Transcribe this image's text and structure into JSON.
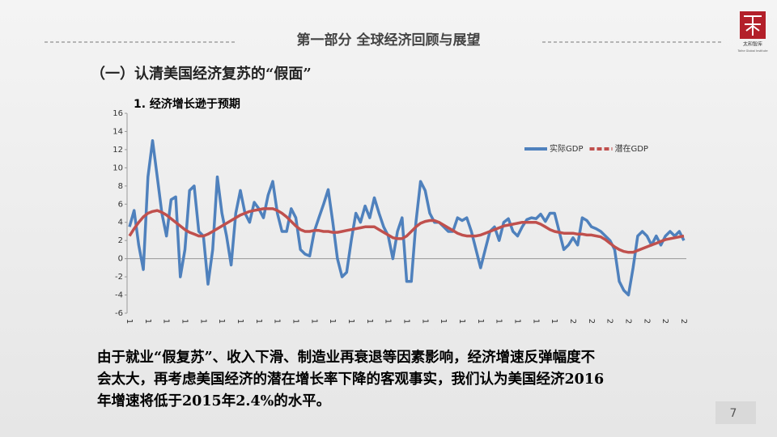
{
  "header": {
    "title": "第一部分  全球经济回顾与展望",
    "logo_name": "太和智库",
    "logo_sub": "Taihe Global Institute"
  },
  "subtitle": "（一）认清美国经济复苏的“假面”",
  "chart_data": {
    "type": "line",
    "title": "1. 经济增长逊于预期",
    "categories": [
      "1",
      null,
      null,
      null,
      "1",
      null,
      null,
      null,
      "1",
      null,
      null,
      null,
      "1",
      null,
      null,
      null,
      "1",
      null,
      null,
      null,
      "1",
      null,
      null,
      null,
      "1",
      null,
      null,
      null,
      "1",
      null,
      null,
      null,
      "1",
      null,
      null,
      null,
      "1",
      null,
      null,
      null,
      "1",
      null,
      null,
      null,
      "1",
      null,
      null,
      null,
      "1",
      null,
      null,
      null,
      "1",
      null,
      null,
      null,
      "1",
      null,
      null,
      null,
      "1",
      null,
      null,
      null,
      "1",
      null,
      null,
      null,
      "1",
      null,
      null,
      null,
      "1",
      null,
      null,
      null,
      "1",
      null,
      null,
      null,
      "1",
      null,
      null,
      null,
      "1",
      null,
      null,
      null,
      "1",
      null,
      null,
      null,
      "1",
      null,
      null,
      null,
      "2",
      null,
      null,
      null,
      "2",
      null,
      null,
      null,
      "2",
      null,
      null,
      null,
      "2",
      null,
      null,
      null,
      "2",
      null,
      null,
      null,
      "2",
      null,
      null,
      null,
      "2"
    ],
    "series": [
      {
        "name": "实际GDP",
        "color": "#4f81bd",
        "values": [
          3.5,
          5.3,
          1.5,
          -1.2,
          9,
          13,
          9,
          5,
          2.5,
          6.5,
          6.8,
          -2,
          1,
          7.5,
          8,
          3,
          2.5,
          -2.8,
          1,
          9,
          5,
          2.5,
          -0.7,
          5,
          7.5,
          5,
          4,
          6.2,
          5.5,
          4.5,
          7,
          8.5,
          5,
          3,
          3,
          5.5,
          4.5,
          1,
          0.5,
          0.3,
          3,
          4.5,
          6,
          7.6,
          4,
          0,
          -2,
          -1.5,
          2,
          5,
          4,
          5.8,
          4.5,
          6.7,
          5,
          3.5,
          2.5,
          0,
          3,
          4.5,
          -2.5,
          -2.5,
          4,
          8.5,
          7.5,
          5,
          4,
          4,
          3.5,
          3,
          3,
          4.5,
          4.2,
          4.5,
          3,
          1,
          -1,
          1,
          3,
          3.5,
          2,
          4,
          4.4,
          3,
          2.5,
          3.5,
          4.3,
          4.5,
          4.4,
          4.9,
          4.1,
          5,
          5,
          3,
          1,
          1.5,
          2.3,
          1.5,
          4.5,
          4.2,
          3.5,
          3.3,
          3,
          2.5,
          2,
          1,
          -2.5,
          -3.5,
          -4,
          -1,
          2.5,
          3,
          2.5,
          1.5,
          2.5,
          1.5,
          2.5,
          3,
          2.5,
          3,
          2
        ]
      },
      {
        "name": "潜在GDP",
        "color": "#c0504d",
        "values": [
          2.5,
          3.3,
          4,
          4.6,
          5,
          5.2,
          5.3,
          5.1,
          4.8,
          4.4,
          4,
          3.6,
          3.2,
          2.9,
          2.7,
          2.5,
          2.5,
          2.7,
          3,
          3.3,
          3.6,
          3.9,
          4.2,
          4.5,
          4.8,
          5,
          5.2,
          5.3,
          5.4,
          5.5,
          5.5,
          5.5,
          5.3,
          5,
          4.6,
          4.1,
          3.6,
          3.2,
          3,
          3,
          3.1,
          3.1,
          3,
          3,
          2.9,
          2.9,
          3,
          3.1,
          3.2,
          3.3,
          3.4,
          3.5,
          3.5,
          3.5,
          3.2,
          2.9,
          2.6,
          2.3,
          2.2,
          2.2,
          2.5,
          3,
          3.5,
          3.9,
          4.1,
          4.2,
          4.2,
          4,
          3.7,
          3.4,
          3.1,
          2.8,
          2.6,
          2.5,
          2.5,
          2.5,
          2.6,
          2.8,
          3,
          3.2,
          3.4,
          3.6,
          3.7,
          3.8,
          3.9,
          4,
          4,
          4,
          4,
          3.8,
          3.5,
          3.2,
          3,
          2.9,
          2.8,
          2.8,
          2.8,
          2.7,
          2.7,
          2.6,
          2.6,
          2.5,
          2.4,
          2.1,
          1.7,
          1.3,
          1,
          0.8,
          0.7,
          0.7,
          0.9,
          1.1,
          1.3,
          1.5,
          1.7,
          1.9,
          2.1,
          2.2,
          2.3,
          2.4,
          2.5
        ]
      }
    ],
    "ylim": [
      -6,
      16
    ],
    "yticks": [
      -6,
      -4,
      -2,
      0,
      2,
      4,
      6,
      8,
      10,
      12,
      14,
      16
    ],
    "grid": false,
    "legend": "top-right"
  },
  "body": {
    "lines": [
      "由于就业“假复苏”、收入下滑、制造业再衰退等因素影响，经济增速反弹幅度不",
      "会太大，再考虑美国经济的潜在增长率下降的客观事实，我们认为美国经济2016",
      "年增速将低于2015年2.4%的水平。"
    ]
  },
  "page_number": "7"
}
